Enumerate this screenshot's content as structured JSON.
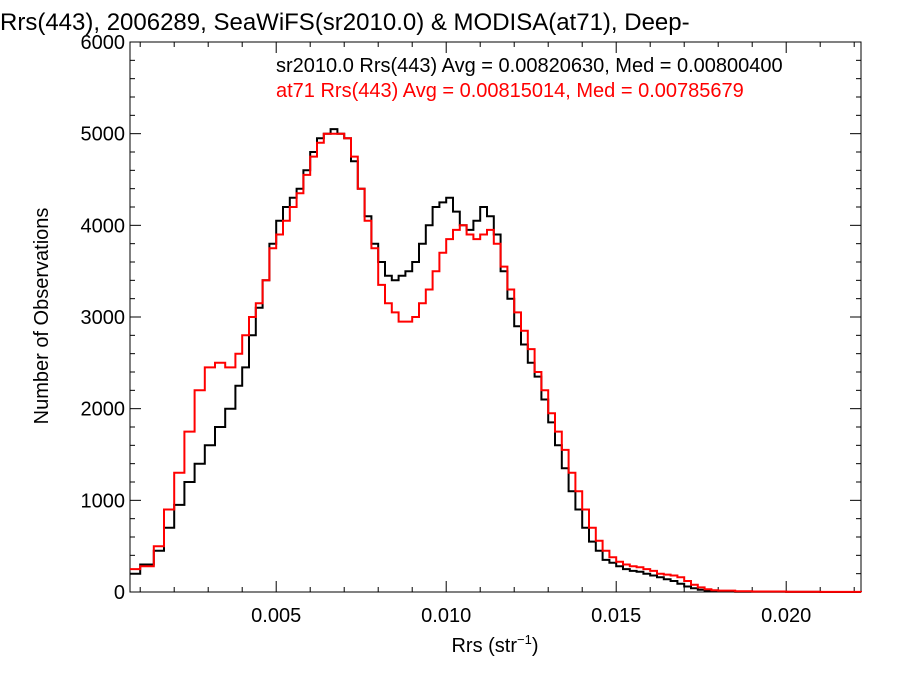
{
  "chart_data": {
    "type": "line",
    "step": true,
    "title": "Rrs(443), 2006289, SeaWiFS(sr2010.0) & MODISA(at71), Deep-",
    "xlabel": "Rrs (str",
    "xlabel_sup": "−1",
    "xlabel_close": ")",
    "ylabel": "Number of Observations",
    "xlim": [
      0.0007,
      0.0222
    ],
    "ylim": [
      0,
      6000
    ],
    "xticks": [
      0.005,
      0.01,
      0.015,
      0.02
    ],
    "xtick_labels": [
      "0.005",
      "0.010",
      "0.015",
      "0.020"
    ],
    "yticks": [
      0,
      1000,
      2000,
      3000,
      4000,
      5000,
      6000
    ],
    "ytick_labels": [
      "0",
      "1000",
      "2000",
      "3000",
      "4000",
      "5000",
      "6000"
    ],
    "annotations": [
      "sr2010.0 Rrs(443) Avg = 0.00820630, Med = 0.00800400",
      "at71 Rrs(443) Avg = 0.00815014, Med = 0.00785679"
    ],
    "series": [
      {
        "name": "sr2010.0",
        "color": "#000000",
        "x": [
          0.0007,
          0.001,
          0.0014,
          0.0017,
          0.002,
          0.0023,
          0.0026,
          0.0029,
          0.0032,
          0.0035,
          0.0038,
          0.004,
          0.0042,
          0.0044,
          0.0046,
          0.0048,
          0.005,
          0.0052,
          0.0054,
          0.0056,
          0.0058,
          0.006,
          0.0062,
          0.0064,
          0.0066,
          0.0068,
          0.007,
          0.0072,
          0.0074,
          0.0076,
          0.0078,
          0.008,
          0.0082,
          0.0084,
          0.0086,
          0.0088,
          0.009,
          0.0092,
          0.0094,
          0.0096,
          0.0098,
          0.01,
          0.0102,
          0.0104,
          0.0106,
          0.0108,
          0.011,
          0.0112,
          0.0114,
          0.0116,
          0.0118,
          0.012,
          0.0122,
          0.0124,
          0.0126,
          0.0128,
          0.013,
          0.0132,
          0.0134,
          0.0136,
          0.0138,
          0.014,
          0.0142,
          0.0144,
          0.0146,
          0.0148,
          0.015,
          0.0152,
          0.0154,
          0.0156,
          0.0158,
          0.016,
          0.0162,
          0.0164,
          0.0166,
          0.0168,
          0.017,
          0.0172,
          0.0174,
          0.0176,
          0.0178,
          0.018,
          0.0185,
          0.019,
          0.02,
          0.021,
          0.0222
        ],
        "y": [
          200,
          300,
          450,
          700,
          950,
          1200,
          1400,
          1600,
          1800,
          2000,
          2250,
          2450,
          2800,
          3100,
          3400,
          3800,
          4050,
          4200,
          4300,
          4400,
          4600,
          4800,
          4950,
          5000,
          5050,
          5000,
          4950,
          4700,
          4400,
          4100,
          3800,
          3600,
          3450,
          3400,
          3450,
          3500,
          3600,
          3800,
          4000,
          4200,
          4250,
          4300,
          4150,
          4000,
          3950,
          4050,
          4200,
          4100,
          3900,
          3500,
          3200,
          2900,
          2700,
          2500,
          2350,
          2100,
          1850,
          1600,
          1350,
          1100,
          900,
          700,
          550,
          450,
          350,
          320,
          280,
          250,
          230,
          220,
          200,
          180,
          160,
          140,
          120,
          90,
          60,
          40,
          25,
          15,
          8,
          5,
          3,
          2,
          1,
          0,
          0
        ]
      },
      {
        "name": "at71",
        "color": "#ff0000",
        "x": [
          0.0007,
          0.001,
          0.0014,
          0.0017,
          0.002,
          0.0023,
          0.0026,
          0.0029,
          0.0032,
          0.0035,
          0.0038,
          0.004,
          0.0042,
          0.0044,
          0.0046,
          0.0048,
          0.005,
          0.0052,
          0.0054,
          0.0056,
          0.0058,
          0.006,
          0.0062,
          0.0064,
          0.0066,
          0.0068,
          0.007,
          0.0072,
          0.0074,
          0.0076,
          0.0078,
          0.008,
          0.0082,
          0.0084,
          0.0086,
          0.0088,
          0.009,
          0.0092,
          0.0094,
          0.0096,
          0.0098,
          0.01,
          0.0102,
          0.0104,
          0.0106,
          0.0108,
          0.011,
          0.0112,
          0.0114,
          0.0116,
          0.0118,
          0.012,
          0.0122,
          0.0124,
          0.0126,
          0.0128,
          0.013,
          0.0132,
          0.0134,
          0.0136,
          0.0138,
          0.014,
          0.0142,
          0.0144,
          0.0146,
          0.0148,
          0.015,
          0.0152,
          0.0154,
          0.0156,
          0.0158,
          0.016,
          0.0162,
          0.0164,
          0.0166,
          0.0168,
          0.017,
          0.0172,
          0.0174,
          0.0176,
          0.0178,
          0.018,
          0.0185,
          0.019,
          0.02,
          0.021,
          0.0222
        ],
        "y": [
          250,
          280,
          500,
          900,
          1300,
          1750,
          2200,
          2450,
          2500,
          2450,
          2600,
          2800,
          3000,
          3150,
          3400,
          3750,
          3900,
          4050,
          4200,
          4350,
          4550,
          4750,
          4900,
          5000,
          5000,
          5000,
          4950,
          4750,
          4400,
          4050,
          3750,
          3350,
          3150,
          3050,
          2950,
          2950,
          3000,
          3150,
          3300,
          3500,
          3700,
          3850,
          3950,
          4000,
          3900,
          3850,
          3900,
          3950,
          3800,
          3550,
          3300,
          3050,
          2850,
          2650,
          2400,
          2200,
          1950,
          1750,
          1550,
          1300,
          1100,
          900,
          700,
          560,
          450,
          380,
          330,
          300,
          280,
          270,
          250,
          230,
          200,
          190,
          180,
          160,
          120,
          80,
          50,
          30,
          20,
          15,
          8,
          5,
          3,
          1,
          0
        ]
      }
    ]
  }
}
